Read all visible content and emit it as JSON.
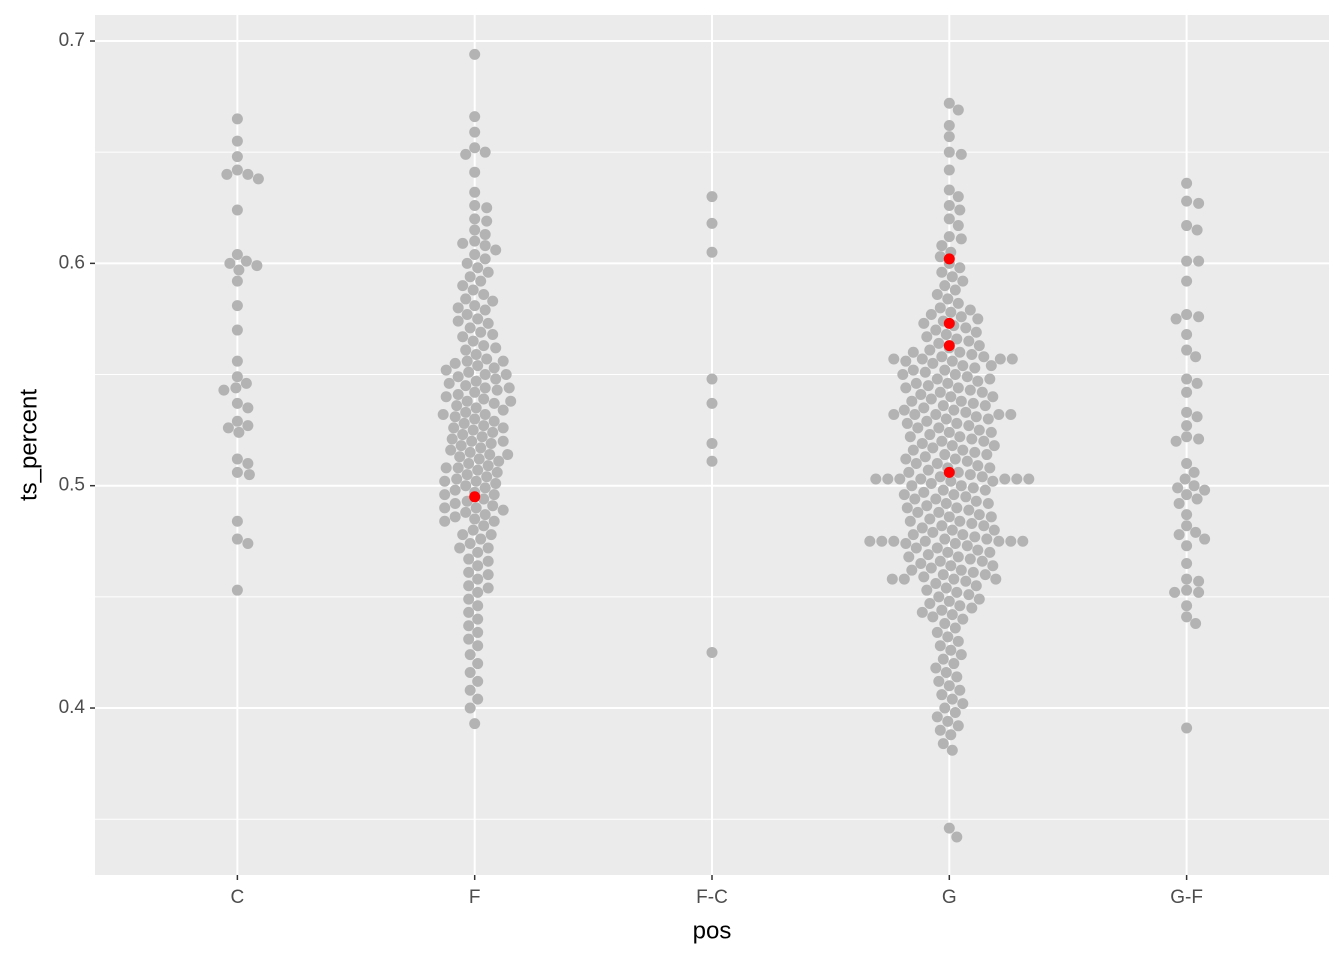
{
  "chart_data": {
    "type": "beeswarm",
    "x_label": "pos",
    "y_label": "ts_percent",
    "categories": [
      "C",
      "F",
      "F-C",
      "G",
      "G-F"
    ],
    "ylim": [
      0.3249,
      0.7117
    ],
    "yticks": [
      0.4,
      0.5,
      0.6,
      0.7
    ],
    "grid": true,
    "color": "#b3b3b3",
    "values": [
      [
        0.665,
        0.655,
        0.648,
        0.642,
        0.64,
        0.64,
        0.638,
        0.624,
        0.604,
        0.601,
        0.6,
        0.599,
        0.597,
        0.592,
        0.581,
        0.57,
        0.556,
        0.549,
        0.546,
        0.544,
        0.543,
        0.537,
        0.535,
        0.529,
        0.527,
        0.526,
        0.524,
        0.512,
        0.51,
        0.506,
        0.505,
        0.484,
        0.476,
        0.474,
        0.453
      ],
      [
        0.694,
        0.666,
        0.659,
        0.652,
        0.65,
        0.649,
        0.641,
        0.632,
        0.626,
        0.625,
        0.62,
        0.619,
        0.615,
        0.613,
        0.61,
        0.609,
        0.608,
        0.606,
        0.604,
        0.602,
        0.6,
        0.598,
        0.596,
        0.594,
        0.592,
        0.59,
        0.588,
        0.586,
        0.584,
        0.583,
        0.581,
        0.579,
        0.577,
        0.575,
        0.573,
        0.571,
        0.569,
        0.567,
        0.565,
        0.563,
        0.561,
        0.559,
        0.557,
        0.556,
        0.555,
        0.554,
        0.553,
        0.552,
        0.551,
        0.55,
        0.549,
        0.548,
        0.547,
        0.546,
        0.545,
        0.544,
        0.543,
        0.542,
        0.541,
        0.54,
        0.539,
        0.538,
        0.537,
        0.536,
        0.535,
        0.534,
        0.533,
        0.532,
        0.531,
        0.53,
        0.529,
        0.528,
        0.527,
        0.526,
        0.525,
        0.524,
        0.523,
        0.522,
        0.521,
        0.52,
        0.519,
        0.518,
        0.517,
        0.516,
        0.515,
        0.514,
        0.513,
        0.512,
        0.511,
        0.51,
        0.509,
        0.508,
        0.507,
        0.506,
        0.505,
        0.504,
        0.503,
        0.502,
        0.501,
        0.5,
        0.499,
        0.498,
        0.497,
        0.496,
        0.494,
        0.493,
        0.492,
        0.491,
        0.49,
        0.489,
        0.488,
        0.487,
        0.486,
        0.485,
        0.484,
        0.482,
        0.48,
        0.478,
        0.476,
        0.474,
        0.472,
        0.47,
        0.467,
        0.464,
        0.461,
        0.458,
        0.455,
        0.452,
        0.449,
        0.446,
        0.443,
        0.44,
        0.437,
        0.434,
        0.431,
        0.428,
        0.424,
        0.42,
        0.416,
        0.412,
        0.408,
        0.404,
        0.4,
        0.393,
        0.58,
        0.574,
        0.568,
        0.562,
        0.556,
        0.55,
        0.544,
        0.538,
        0.532,
        0.526,
        0.52,
        0.514,
        0.508,
        0.502,
        0.496,
        0.49,
        0.484,
        0.478,
        0.472,
        0.466,
        0.46,
        0.454
      ],
      [
        0.63,
        0.618,
        0.605,
        0.548,
        0.537,
        0.519,
        0.511,
        0.425
      ],
      [
        0.672,
        0.669,
        0.662,
        0.657,
        0.65,
        0.649,
        0.642,
        0.633,
        0.63,
        0.626,
        0.624,
        0.62,
        0.617,
        0.612,
        0.611,
        0.608,
        0.605,
        0.603,
        0.6,
        0.598,
        0.596,
        0.594,
        0.592,
        0.59,
        0.588,
        0.586,
        0.584,
        0.582,
        0.58,
        0.578,
        0.576,
        0.574,
        0.572,
        0.57,
        0.568,
        0.566,
        0.564,
        0.562,
        0.56,
        0.558,
        0.556,
        0.554,
        0.552,
        0.55,
        0.548,
        0.546,
        0.544,
        0.542,
        0.54,
        0.538,
        0.536,
        0.534,
        0.532,
        0.53,
        0.528,
        0.526,
        0.524,
        0.522,
        0.52,
        0.518,
        0.516,
        0.514,
        0.512,
        0.51,
        0.508,
        0.506,
        0.504,
        0.502,
        0.5,
        0.498,
        0.496,
        0.494,
        0.492,
        0.49,
        0.488,
        0.486,
        0.484,
        0.482,
        0.48,
        0.478,
        0.476,
        0.474,
        0.472,
        0.47,
        0.468,
        0.466,
        0.464,
        0.462,
        0.46,
        0.458,
        0.456,
        0.454,
        0.452,
        0.45,
        0.448,
        0.446,
        0.444,
        0.442,
        0.44,
        0.579,
        0.577,
        0.575,
        0.573,
        0.571,
        0.569,
        0.567,
        0.565,
        0.563,
        0.561,
        0.559,
        0.557,
        0.555,
        0.553,
        0.551,
        0.549,
        0.547,
        0.545,
        0.543,
        0.541,
        0.539,
        0.537,
        0.535,
        0.533,
        0.531,
        0.529,
        0.527,
        0.525,
        0.523,
        0.521,
        0.519,
        0.517,
        0.515,
        0.513,
        0.511,
        0.509,
        0.507,
        0.505,
        0.503,
        0.501,
        0.499,
        0.497,
        0.495,
        0.493,
        0.491,
        0.489,
        0.487,
        0.485,
        0.483,
        0.481,
        0.479,
        0.477,
        0.475,
        0.473,
        0.471,
        0.469,
        0.467,
        0.465,
        0.463,
        0.461,
        0.459,
        0.457,
        0.455,
        0.453,
        0.451,
        0.449,
        0.447,
        0.445,
        0.443,
        0.441,
        0.56,
        0.558,
        0.556,
        0.554,
        0.552,
        0.55,
        0.548,
        0.546,
        0.544,
        0.542,
        0.54,
        0.538,
        0.536,
        0.534,
        0.532,
        0.53,
        0.528,
        0.526,
        0.524,
        0.522,
        0.52,
        0.518,
        0.516,
        0.514,
        0.512,
        0.51,
        0.508,
        0.506,
        0.504,
        0.502,
        0.5,
        0.498,
        0.496,
        0.494,
        0.492,
        0.49,
        0.488,
        0.486,
        0.484,
        0.482,
        0.48,
        0.478,
        0.476,
        0.474,
        0.472,
        0.47,
        0.468,
        0.466,
        0.464,
        0.462,
        0.46,
        0.503,
        0.503,
        0.503,
        0.503,
        0.503,
        0.503,
        0.475,
        0.475,
        0.475,
        0.475,
        0.475,
        0.475,
        0.532,
        0.532,
        0.532,
        0.557,
        0.557,
        0.557,
        0.458,
        0.458,
        0.458,
        0.438,
        0.436,
        0.434,
        0.432,
        0.43,
        0.428,
        0.426,
        0.424,
        0.422,
        0.42,
        0.418,
        0.416,
        0.414,
        0.412,
        0.41,
        0.408,
        0.406,
        0.404,
        0.402,
        0.4,
        0.398,
        0.396,
        0.394,
        0.392,
        0.39,
        0.388,
        0.384,
        0.381,
        0.346,
        0.342
      ],
      [
        0.636,
        0.628,
        0.627,
        0.617,
        0.615,
        0.601,
        0.601,
        0.592,
        0.577,
        0.576,
        0.575,
        0.568,
        0.561,
        0.558,
        0.548,
        0.546,
        0.542,
        0.533,
        0.531,
        0.527,
        0.522,
        0.521,
        0.52,
        0.51,
        0.506,
        0.503,
        0.5,
        0.499,
        0.498,
        0.496,
        0.494,
        0.492,
        0.487,
        0.482,
        0.479,
        0.478,
        0.476,
        0.473,
        0.465,
        0.458,
        0.457,
        0.453,
        0.452,
        0.452,
        0.446,
        0.441,
        0.438,
        0.391
      ]
    ],
    "highlight_color": "#ff0000",
    "highlight_values": [
      [],
      [
        0.495
      ],
      [],
      [
        0.602,
        0.573,
        0.563,
        0.506
      ],
      []
    ]
  }
}
